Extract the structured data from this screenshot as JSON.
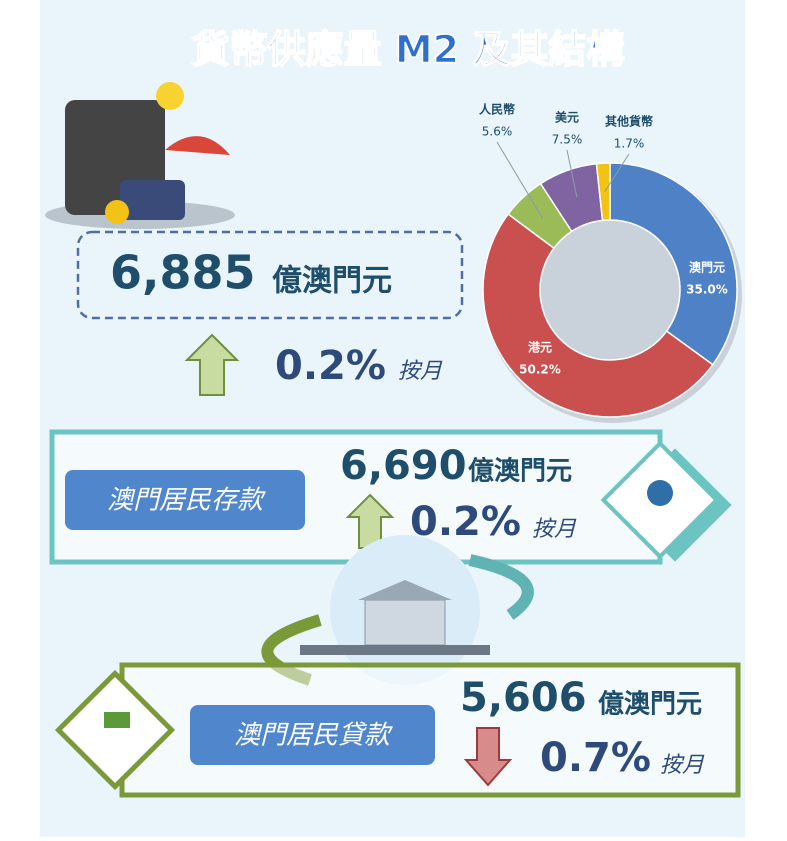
{
  "title": "貨幣供應量 M2 及其結構",
  "m2": {
    "amount": "6,885",
    "unit": "億澳門元",
    "change": "0.2%",
    "period": "按月"
  },
  "deposits": {
    "label": "澳門居民存款",
    "amount": "6,690",
    "unit": "億澳門元",
    "change": "0.2%",
    "period": "按月"
  },
  "loans": {
    "label": "澳門居民貸款",
    "amount": "5,606",
    "unit": "億澳門元",
    "change": "0.7%",
    "period": "按月"
  },
  "chart_data": {
    "type": "pie",
    "categories": [
      "澳門元",
      "港元",
      "人民幣",
      "美元",
      "其他貨幣"
    ],
    "values": [
      35.0,
      50.2,
      5.6,
      7.5,
      1.7
    ],
    "value_labels": [
      "35.0%",
      "50.2%",
      "5.6%",
      "7.5%",
      "1.7%"
    ],
    "colors": [
      "#4f81c7",
      "#c9504f",
      "#9bbb59",
      "#8064a2",
      "#f2c314"
    ]
  }
}
